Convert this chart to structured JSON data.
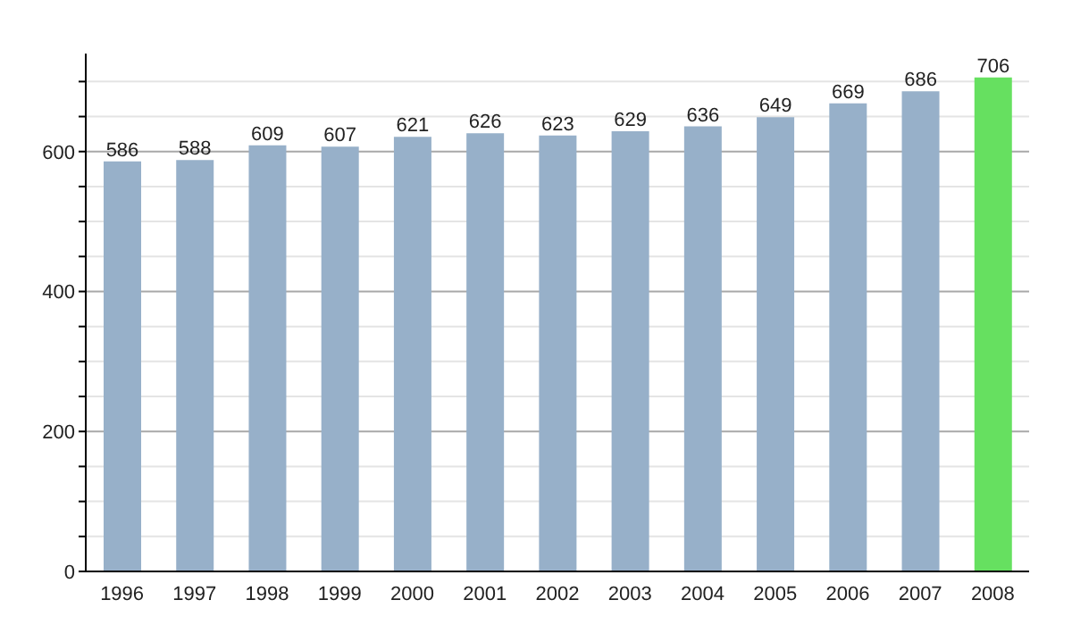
{
  "chart_data": {
    "type": "bar",
    "categories": [
      "1996",
      "1997",
      "1998",
      "1999",
      "2000",
      "2001",
      "2002",
      "2003",
      "2004",
      "2005",
      "2006",
      "2007",
      "2008"
    ],
    "values": [
      586,
      588,
      609,
      607,
      621,
      626,
      623,
      629,
      636,
      649,
      669,
      686,
      706
    ],
    "colors": [
      "#97b0c9",
      "#97b0c9",
      "#97b0c9",
      "#97b0c9",
      "#97b0c9",
      "#97b0c9",
      "#97b0c9",
      "#97b0c9",
      "#97b0c9",
      "#97b0c9",
      "#97b0c9",
      "#97b0c9",
      "#66e060"
    ],
    "ylim": [
      0,
      740
    ],
    "yticks": [
      0,
      {
        "value": 50,
        "label": null
      },
      200,
      {
        "value": 100,
        "label": null
      },
      {
        "value": 150,
        "label": null
      },
      {
        "value": 250,
        "label": null
      },
      {
        "value": 300,
        "label": null
      },
      {
        "value": 350,
        "label": null
      },
      400,
      {
        "value": 450,
        "label": null
      },
      {
        "value": 500,
        "label": null
      },
      {
        "value": 550,
        "label": null
      },
      600,
      {
        "value": 650,
        "label": null
      },
      {
        "value": 700,
        "label": null
      }
    ],
    "grid": "y",
    "data_labels": true,
    "legend": false
  }
}
